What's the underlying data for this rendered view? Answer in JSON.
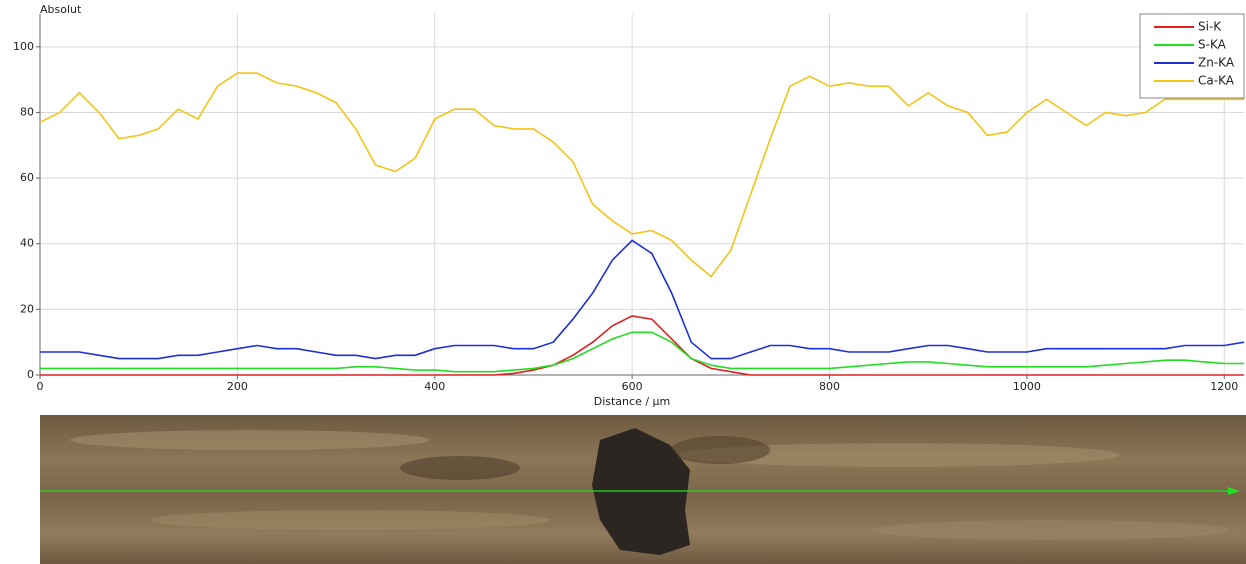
{
  "chart_data": {
    "type": "line",
    "y_label": "Absolut",
    "x_label": "Distance / µm",
    "x": [
      0,
      20,
      40,
      60,
      80,
      100,
      120,
      140,
      160,
      180,
      200,
      220,
      240,
      260,
      280,
      300,
      320,
      340,
      360,
      380,
      400,
      420,
      440,
      460,
      480,
      500,
      520,
      540,
      560,
      580,
      600,
      620,
      640,
      660,
      680,
      700,
      720,
      740,
      760,
      780,
      800,
      820,
      840,
      860,
      880,
      900,
      920,
      940,
      960,
      980,
      1000,
      1020,
      1040,
      1060,
      1080,
      1100,
      1120,
      1140,
      1160,
      1180,
      1200,
      1220
    ],
    "series": [
      {
        "name": "Si-K",
        "color": "#e02020",
        "values": [
          0,
          0,
          0,
          0,
          0,
          0,
          0,
          0,
          0,
          0,
          0,
          0,
          0,
          0,
          0,
          0,
          0,
          0,
          0,
          0,
          0,
          0,
          0,
          0,
          0.5,
          1.5,
          3,
          6,
          10,
          15,
          18,
          17,
          11,
          5,
          2,
          1,
          0,
          0,
          0,
          0,
          0,
          0,
          0,
          0,
          0,
          0,
          0,
          0,
          0,
          0,
          0,
          0,
          0,
          0,
          0,
          0,
          0,
          0,
          0,
          0,
          0,
          0
        ]
      },
      {
        "name": "S-KA",
        "color": "#22dd22",
        "values": [
          2,
          2,
          2,
          2,
          2,
          2,
          2,
          2,
          2,
          2,
          2,
          2,
          2,
          2,
          2,
          2,
          2.5,
          2.5,
          2,
          1.5,
          1.5,
          1,
          1,
          1,
          1.5,
          2,
          3,
          5,
          8,
          11,
          13,
          13,
          10,
          5,
          3,
          2,
          2,
          2,
          2,
          2,
          2,
          2.5,
          3,
          3.5,
          4,
          4,
          3.5,
          3,
          2.5,
          2.5,
          2.5,
          2.5,
          2.5,
          2.5,
          3,
          3.5,
          4,
          4.5,
          4.5,
          4,
          3.5,
          3.5
        ]
      },
      {
        "name": "Zn-KA",
        "color": "#1f2fd6",
        "values": [
          7,
          7,
          7,
          6,
          5,
          5,
          5,
          6,
          6,
          7,
          8,
          9,
          8,
          8,
          7,
          6,
          6,
          5,
          6,
          6,
          8,
          9,
          9,
          9,
          8,
          8,
          10,
          17,
          25,
          35,
          41,
          37,
          25,
          10,
          5,
          5,
          7,
          9,
          9,
          8,
          8,
          7,
          7,
          7,
          8,
          9,
          9,
          8,
          7,
          7,
          7,
          8,
          8,
          8,
          8,
          8,
          8,
          8,
          9,
          9,
          9,
          10
        ]
      },
      {
        "name": "Ca-KA",
        "color": "#f2c418",
        "values": [
          77,
          80,
          86,
          80,
          72,
          73,
          75,
          81,
          78,
          88,
          92,
          92,
          89,
          88,
          86,
          83,
          75,
          64,
          62,
          66,
          78,
          81,
          81,
          76,
          75,
          75,
          71,
          65,
          52,
          47,
          43,
          44,
          41,
          35,
          30,
          38,
          55,
          72,
          88,
          91,
          88,
          89,
          88,
          88,
          82,
          86,
          82,
          80,
          73,
          74,
          80,
          84,
          80,
          76,
          80,
          79,
          80,
          84,
          84,
          84,
          84,
          84
        ]
      }
    ],
    "xlim": [
      0,
      1220
    ],
    "ylim": [
      0,
      110
    ],
    "xticks": [
      0,
      200,
      400,
      600,
      800,
      1000,
      1200
    ],
    "yticks": [
      0,
      20,
      40,
      60,
      80,
      100
    ],
    "grid": true,
    "legend": "top-right"
  }
}
